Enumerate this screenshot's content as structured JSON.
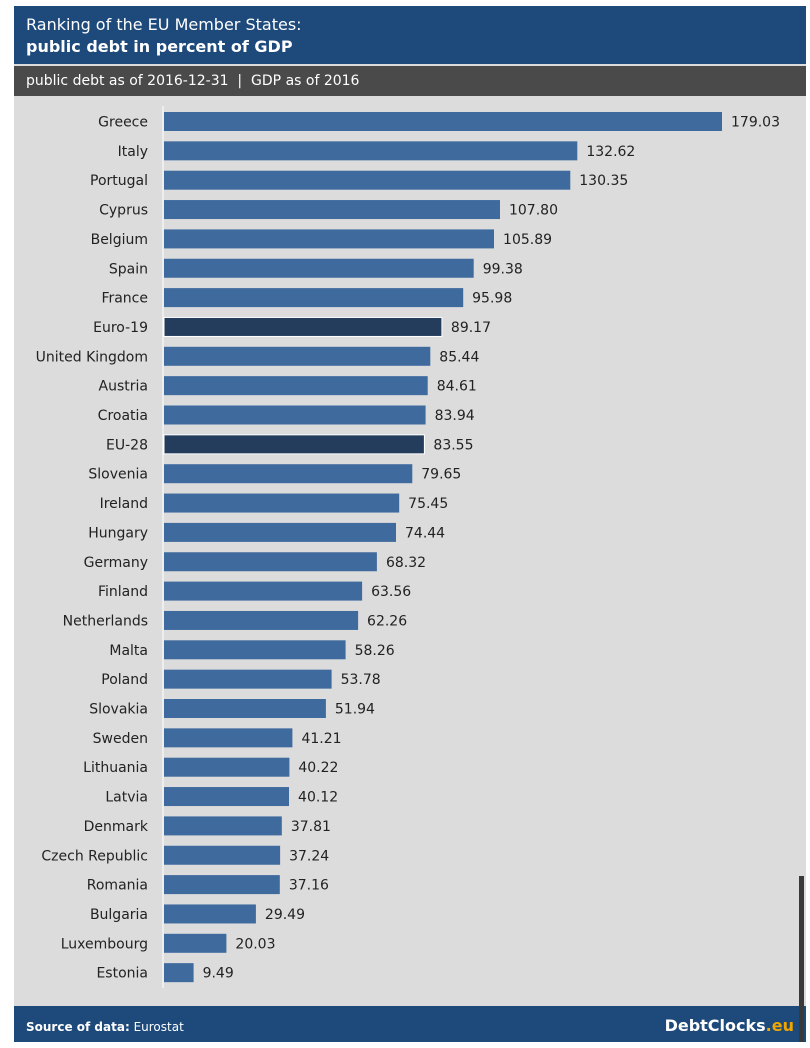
{
  "header": {
    "title_line1": "Ranking of the EU Member States:",
    "title_line2": "public debt in percent of GDP",
    "subtitle": "public debt as of 2016-12-31  |  GDP as of 2016"
  },
  "footer": {
    "source_label": "Source of data:",
    "source_value": "Eurostat",
    "brand_name": "DebtClocks",
    "brand_tld": ".eu"
  },
  "colors": {
    "bar": "#3f6a9e",
    "bar_highlight": "#243d5c",
    "header": "#1d4a7b",
    "subbar": "#4a4a4a",
    "background": "#dcdcdc"
  },
  "chart_data": {
    "type": "bar",
    "orientation": "horizontal",
    "title": "Ranking of the EU Member States: public debt in percent of GDP",
    "xlim": [
      0,
      179.03
    ],
    "categories": [
      "Greece",
      "Italy",
      "Portugal",
      "Cyprus",
      "Belgium",
      "Spain",
      "France",
      "Euro-19",
      "United Kingdom",
      "Austria",
      "Croatia",
      "EU-28",
      "Slovenia",
      "Ireland",
      "Hungary",
      "Germany",
      "Finland",
      "Netherlands",
      "Malta",
      "Poland",
      "Slovakia",
      "Sweden",
      "Lithuania",
      "Latvia",
      "Denmark",
      "Czech Republic",
      "Romania",
      "Bulgaria",
      "Luxembourg",
      "Estonia"
    ],
    "values": [
      179.03,
      132.62,
      130.35,
      107.8,
      105.89,
      99.38,
      95.98,
      89.17,
      85.44,
      84.61,
      83.94,
      83.55,
      79.65,
      75.45,
      74.44,
      68.32,
      63.56,
      62.26,
      58.26,
      53.78,
      51.94,
      41.21,
      40.22,
      40.12,
      37.81,
      37.24,
      37.16,
      29.49,
      20.03,
      9.49
    ],
    "value_labels": [
      "179.03",
      "132.62",
      "130.35",
      "107.80",
      "105.89",
      "99.38",
      "95.98",
      "89.17",
      "85.44",
      "84.61",
      "83.94",
      "83.55",
      "79.65",
      "75.45",
      "74.44",
      "68.32",
      "63.56",
      "62.26",
      "58.26",
      "53.78",
      "51.94",
      "41.21",
      "40.22",
      "40.12",
      "37.81",
      "37.24",
      "37.16",
      "29.49",
      "20.03",
      "9.49"
    ],
    "highlighted": [
      "Euro-19",
      "EU-28"
    ]
  }
}
